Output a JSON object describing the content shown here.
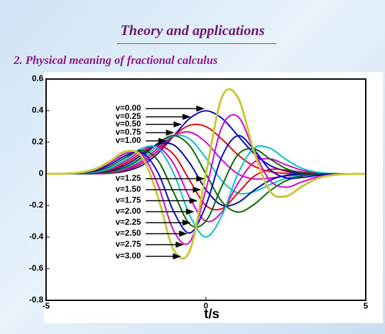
{
  "header": {
    "title": "Theory and applications",
    "subtitle": "2. Physical meaning of fractional calculus"
  },
  "chart_data": {
    "type": "line",
    "xlabel": "t/s",
    "xlim": [
      -5,
      5
    ],
    "xticks": [
      -5,
      0,
      5
    ],
    "ylim": [
      -0.8,
      0.6
    ],
    "yticks": [
      0.6,
      0.4,
      0.2,
      0,
      -0.2,
      -0.4,
      -0.6,
      -0.8
    ],
    "x": [
      -5,
      -4.5,
      -4,
      -3.5,
      -3,
      -2.5,
      -2,
      -1.5,
      -1,
      -0.5,
      0,
      0.5,
      1,
      1.5,
      2,
      2.5,
      3,
      3.5,
      4,
      4.5,
      5
    ],
    "series": [
      {
        "name": "v=0.00",
        "color": "#0000c8",
        "values": [
          0,
          0,
          0,
          0.001,
          0.004,
          0.018,
          0.054,
          0.13,
          0.242,
          0.352,
          0.399,
          0.352,
          0.242,
          0.13,
          0.054,
          0.018,
          0.004,
          0.001,
          0,
          0,
          0
        ]
      },
      {
        "name": "v=0.25",
        "color": "#e00000",
        "values": [
          0,
          0,
          0,
          0.002,
          0.006,
          0.025,
          0.068,
          0.146,
          0.242,
          0.308,
          0.299,
          0.22,
          0.121,
          0.049,
          0.014,
          0.003,
          0,
          0,
          0,
          0,
          0
        ]
      },
      {
        "name": "v=0.50",
        "color": "#d000d0",
        "values": [
          0,
          0,
          0.001,
          0.002,
          0.009,
          0.031,
          0.081,
          0.162,
          0.242,
          0.264,
          0.2,
          0.088,
          0,
          -0.032,
          -0.027,
          -0.013,
          -0.005,
          -0.001,
          -0.001,
          0,
          0
        ]
      },
      {
        "name": "v=0.75",
        "color": "#00c0c0",
        "values": [
          0,
          0,
          0.001,
          0.003,
          0.011,
          0.038,
          0.095,
          0.178,
          0.242,
          0.22,
          0.1,
          -0.044,
          -0.121,
          -0.113,
          -0.068,
          -0.029,
          -0.009,
          -0.002,
          -0.001,
          0,
          0
        ]
      },
      {
        "name": "v=1.00",
        "color": "#006400",
        "values": [
          0,
          0,
          0.001,
          0.003,
          0.013,
          0.044,
          0.108,
          0.194,
          0.242,
          0.176,
          0,
          -0.176,
          -0.242,
          -0.194,
          -0.108,
          -0.044,
          -0.013,
          -0.003,
          -0.001,
          0,
          0
        ]
      },
      {
        "name": "v=1.25",
        "color": "#0000a0",
        "values": [
          0,
          0,
          0.001,
          0.005,
          0.019,
          0.056,
          0.122,
          0.186,
          0.182,
          0.066,
          -0.1,
          -0.198,
          -0.182,
          -0.105,
          -0.041,
          -0.01,
          -0.001,
          0,
          0,
          0,
          0
        ]
      },
      {
        "name": "v=1.50",
        "color": "#e00000",
        "values": [
          0,
          0,
          0.002,
          0.007,
          0.024,
          0.068,
          0.135,
          0.178,
          0.121,
          -0.044,
          -0.2,
          -0.22,
          -0.121,
          -0.016,
          0.027,
          0.024,
          0.011,
          0.004,
          0.001,
          0,
          0
        ]
      },
      {
        "name": "v=1.75",
        "color": "#d000d0",
        "values": [
          0,
          0,
          0.002,
          0.008,
          0.03,
          0.08,
          0.149,
          0.17,
          0.061,
          -0.154,
          -0.299,
          -0.242,
          -0.061,
          0.073,
          0.095,
          0.058,
          0.023,
          0.007,
          0.001,
          0,
          0
        ]
      },
      {
        "name": "v=2.00",
        "color": "#00c0c0",
        "values": [
          0,
          0,
          0.002,
          0.01,
          0.035,
          0.092,
          0.162,
          0.162,
          0,
          -0.264,
          -0.399,
          -0.264,
          0,
          0.162,
          0.162,
          0.092,
          0.035,
          0.01,
          0.002,
          0,
          0
        ]
      },
      {
        "name": "v=2.25",
        "color": "#006400",
        "values": [
          0,
          0,
          0.003,
          0.015,
          0.046,
          0.105,
          0.149,
          0.085,
          -0.121,
          -0.319,
          -0.299,
          -0.077,
          0.121,
          0.158,
          0.095,
          0.034,
          0.006,
          0.001,
          0,
          0,
          0
        ]
      },
      {
        "name": "v=2.50",
        "color": "#0000c8",
        "values": [
          0,
          0.001,
          0.005,
          0.019,
          0.058,
          0.117,
          0.135,
          0.008,
          -0.242,
          -0.374,
          -0.2,
          0.11,
          0.242,
          0.154,
          0.027,
          -0.025,
          -0.023,
          -0.009,
          -0.003,
          -0.001,
          0
        ]
      },
      {
        "name": "v=2.75",
        "color": "#d000d0",
        "values": [
          0,
          0.001,
          0.006,
          0.024,
          0.069,
          0.13,
          0.122,
          -0.069,
          -0.363,
          -0.429,
          -0.1,
          0.297,
          0.363,
          0.15,
          -0.041,
          -0.084,
          -0.051,
          -0.019,
          -0.005,
          -0.001,
          0
        ]
      },
      {
        "name": "v=3.00",
        "color": "#c8c832",
        "values": [
          0,
          0.001,
          0.007,
          0.028,
          0.08,
          0.142,
          0.108,
          -0.146,
          -0.484,
          -0.484,
          0,
          0.484,
          0.484,
          0.146,
          -0.108,
          -0.142,
          -0.08,
          -0.028,
          -0.007,
          -0.001,
          0
        ]
      }
    ]
  }
}
